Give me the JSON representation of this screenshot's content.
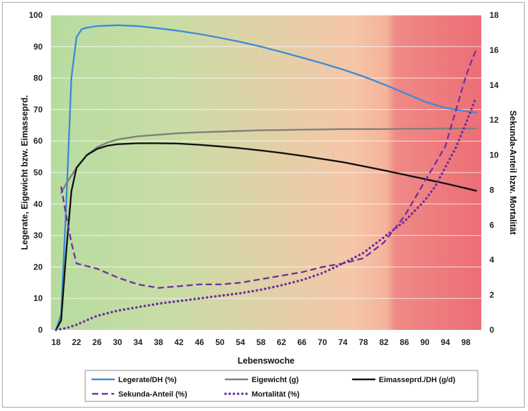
{
  "chart_data": {
    "type": "line",
    "title": "",
    "xlabel": "Lebenswoche",
    "ylabel_left": "Legerate, Eigewicht bzw. Eimasseprd.",
    "ylabel_right": "Sekunda-Anteil bzw. Mortalität",
    "xlim": [
      17,
      101
    ],
    "ylim_left": [
      0,
      100
    ],
    "ylim_right": [
      0,
      18
    ],
    "x_ticks": [
      18,
      22,
      26,
      30,
      34,
      38,
      42,
      46,
      50,
      54,
      58,
      62,
      66,
      70,
      74,
      78,
      82,
      86,
      90,
      94,
      98
    ],
    "y_ticks_left": [
      0,
      10,
      20,
      30,
      40,
      50,
      60,
      70,
      80,
      90,
      100
    ],
    "y_ticks_right": [
      0,
      2,
      4,
      6,
      8,
      10,
      12,
      14,
      16,
      18
    ],
    "gridlines": "horizontal",
    "background": "gradient green to red along x",
    "background_colors": [
      "#b7dca0",
      "#f5c6a8",
      "#ec6e76"
    ],
    "legend_position": "bottom",
    "series": [
      {
        "name": "Legerate/DH (%)",
        "axis": "left",
        "color": "#3d8bd5",
        "style": "solid",
        "x": [
          18,
          19,
          20,
          21,
          22,
          23,
          24,
          26,
          30,
          34,
          38,
          42,
          46,
          50,
          54,
          58,
          62,
          66,
          70,
          74,
          78,
          82,
          86,
          90,
          94,
          98,
          100
        ],
        "y": [
          0,
          5,
          40,
          80,
          93,
          95.5,
          96,
          96.5,
          96.8,
          96.5,
          95.8,
          95,
          94,
          92.8,
          91.5,
          90,
          88.3,
          86.5,
          84.7,
          82.7,
          80.5,
          78,
          75.3,
          72.5,
          70.5,
          69.5,
          69
        ]
      },
      {
        "name": "Eigewicht (g)",
        "axis": "left",
        "color": "#7f7f7f",
        "style": "solid",
        "x": [
          19,
          20,
          22,
          24,
          26,
          28,
          30,
          34,
          38,
          42,
          46,
          50,
          54,
          58,
          62,
          66,
          70,
          74,
          78,
          82,
          86,
          90,
          94,
          98,
          100
        ],
        "y": [
          43.5,
          46.5,
          51.5,
          55.5,
          58,
          59.5,
          60.5,
          61.5,
          62,
          62.5,
          62.8,
          63,
          63.2,
          63.4,
          63.5,
          63.6,
          63.7,
          63.8,
          63.8,
          63.8,
          63.9,
          63.9,
          64,
          64,
          64
        ]
      },
      {
        "name": "Eimasseprd./DH (g/d)",
        "axis": "left",
        "color": "#111111",
        "style": "solid",
        "x": [
          18,
          19,
          20,
          21,
          22,
          24,
          26,
          28,
          30,
          34,
          38,
          42,
          46,
          50,
          54,
          58,
          62,
          66,
          70,
          74,
          78,
          82,
          86,
          90,
          94,
          98,
          100
        ],
        "y": [
          0,
          3,
          25,
          44,
          51.5,
          55.5,
          57.5,
          58.5,
          59,
          59.3,
          59.3,
          59.2,
          58.8,
          58.3,
          57.7,
          57,
          56.2,
          55.3,
          54.3,
          53.3,
          52,
          50.7,
          49.3,
          47.9,
          46.5,
          45,
          44.2
        ]
      },
      {
        "name": "Sekunda-Anteil (%)",
        "axis": "right",
        "color": "#7030a0",
        "style": "dashed",
        "x": [
          19,
          20,
          21,
          22,
          26,
          30,
          34,
          38,
          42,
          46,
          50,
          54,
          58,
          62,
          66,
          70,
          74,
          78,
          82,
          86,
          90,
          92,
          94,
          96,
          98,
          99,
          100
        ],
        "y": [
          8.2,
          6.5,
          5,
          3.8,
          3.5,
          3,
          2.6,
          2.4,
          2.5,
          2.6,
          2.6,
          2.7,
          2.9,
          3.1,
          3.3,
          3.6,
          3.8,
          4.1,
          5,
          6.5,
          8.5,
          9.5,
          10.5,
          12.5,
          14.5,
          15.3,
          16
        ]
      },
      {
        "name": "Mortalität (%)",
        "axis": "right",
        "color": "#7030a0",
        "style": "dotted",
        "x": [
          18,
          20,
          22,
          26,
          30,
          34,
          38,
          42,
          46,
          50,
          54,
          58,
          62,
          66,
          70,
          74,
          78,
          82,
          86,
          90,
          92,
          94,
          96,
          98,
          100
        ],
        "y": [
          0,
          0.1,
          0.3,
          0.8,
          1.1,
          1.3,
          1.5,
          1.65,
          1.8,
          1.95,
          2.1,
          2.3,
          2.55,
          2.85,
          3.25,
          3.8,
          4.4,
          5.3,
          6.2,
          7.4,
          8.2,
          9.3,
          10.4,
          11.8,
          13.3
        ]
      }
    ],
    "legend": [
      [
        "Legerate/DH (%)",
        "Eigewicht (g)",
        "Eimasseprd./DH (g/d)"
      ],
      [
        "Sekunda-Anteil (%)",
        "Mortalität (%)"
      ]
    ]
  }
}
